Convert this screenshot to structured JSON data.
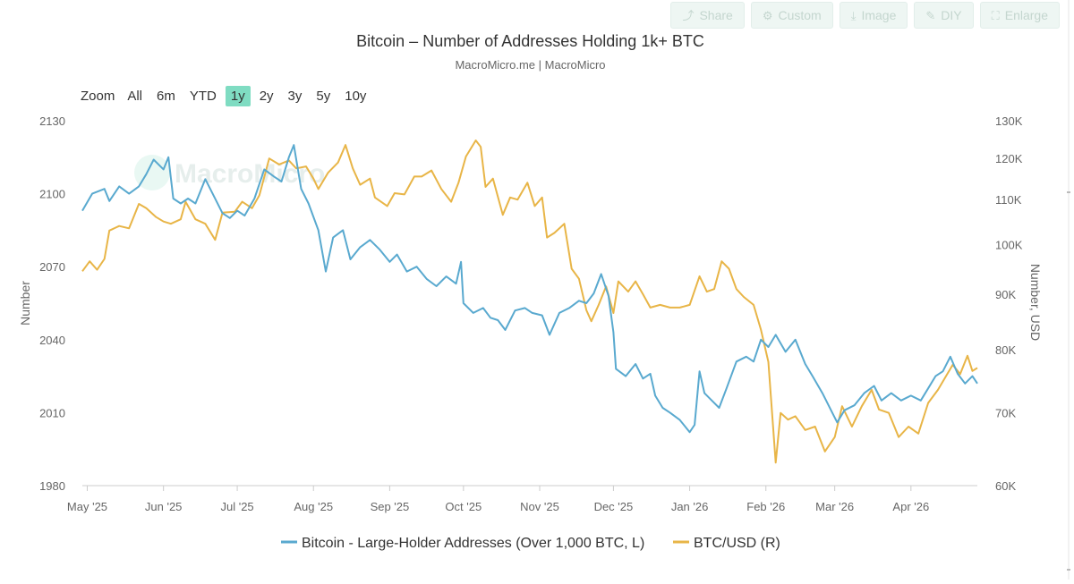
{
  "toolbar": {
    "buttons": [
      {
        "label": "Share",
        "icon": "share-icon",
        "glyph": "⤴"
      },
      {
        "label": "Custom",
        "icon": "gear-icon",
        "glyph": "⚙"
      },
      {
        "label": "Image",
        "icon": "download-icon",
        "glyph": "⤓"
      },
      {
        "label": "DIY",
        "icon": "pencil-icon",
        "glyph": "✎"
      },
      {
        "label": "Enlarge",
        "icon": "expand-icon",
        "glyph": "⛶"
      }
    ]
  },
  "zoom": {
    "label": "Zoom",
    "options": [
      "All",
      "6m",
      "YTD",
      "1y",
      "2y",
      "3y",
      "5y",
      "10y"
    ],
    "selected": "1y"
  },
  "colors": {
    "addresses": "#59a9cf",
    "btc": "#e8b547",
    "zoom_active": "#7fdcc2"
  },
  "watermark": "MacroMicro",
  "chart_data": {
    "type": "line",
    "title": "Bitcoin – Number of Addresses Holding 1k+ BTC",
    "subtitle": "MacroMicro.me | MacroMicro",
    "x_start": "2025-04-29",
    "x_end": "2026-04-28",
    "x_ticks": [
      {
        "date": "2025-05-01",
        "label": "May '25"
      },
      {
        "date": "2025-06-01",
        "label": "Jun '25"
      },
      {
        "date": "2025-07-01",
        "label": "Jul '25"
      },
      {
        "date": "2025-08-01",
        "label": "Aug '25"
      },
      {
        "date": "2025-09-01",
        "label": "Sep '25"
      },
      {
        "date": "2025-10-01",
        "label": "Oct '25"
      },
      {
        "date": "2025-11-01",
        "label": "Nov '25"
      },
      {
        "date": "2025-12-01",
        "label": "Dec '25"
      },
      {
        "date": "2026-01-01",
        "label": "Jan '26"
      },
      {
        "date": "2026-02-01",
        "label": "Feb '26"
      },
      {
        "date": "2026-03-01",
        "label": "Mar '26"
      },
      {
        "date": "2026-04-01",
        "label": "Apr '26"
      }
    ],
    "y_left": {
      "label": "Number",
      "min": 1980,
      "max": 2130,
      "ticks": [
        1980,
        2010,
        2040,
        2070,
        2100,
        2130
      ]
    },
    "y_right": {
      "label": "Number, USD",
      "scale": "log",
      "min": 60000,
      "max": 130000,
      "ticks": [
        60000,
        70000,
        80000,
        90000,
        100000,
        110000,
        120000,
        130000
      ],
      "tick_labels": [
        "60K",
        "70K",
        "80K",
        "90K",
        "100K",
        "110K",
        "120K",
        "130K"
      ]
    },
    "grid": false,
    "legend_position": "bottom-center",
    "series": [
      {
        "name": "Bitcoin - Large-Holder Addresses (Over 1,000 BTC, L)",
        "axis": "left",
        "color": "#59a9cf",
        "points": [
          [
            "2025-04-29",
            2093
          ],
          [
            "2025-05-03",
            2100
          ],
          [
            "2025-05-08",
            2102
          ],
          [
            "2025-05-10",
            2097
          ],
          [
            "2025-05-14",
            2103
          ],
          [
            "2025-05-18",
            2100
          ],
          [
            "2025-05-22",
            2103
          ],
          [
            "2025-05-25",
            2108
          ],
          [
            "2025-05-28",
            2114
          ],
          [
            "2025-06-01",
            2110
          ],
          [
            "2025-06-03",
            2115
          ],
          [
            "2025-06-05",
            2098
          ],
          [
            "2025-06-08",
            2096
          ],
          [
            "2025-06-11",
            2098
          ],
          [
            "2025-06-14",
            2096
          ],
          [
            "2025-06-18",
            2106
          ],
          [
            "2025-06-21",
            2100
          ],
          [
            "2025-06-25",
            2092
          ],
          [
            "2025-06-28",
            2090
          ],
          [
            "2025-07-01",
            2093
          ],
          [
            "2025-07-04",
            2091
          ],
          [
            "2025-07-08",
            2098
          ],
          [
            "2025-07-12",
            2110
          ],
          [
            "2025-07-16",
            2107
          ],
          [
            "2025-07-19",
            2105
          ],
          [
            "2025-07-22",
            2115
          ],
          [
            "2025-07-24",
            2120
          ],
          [
            "2025-07-27",
            2102
          ],
          [
            "2025-07-30",
            2096
          ],
          [
            "2025-08-03",
            2085
          ],
          [
            "2025-08-06",
            2068
          ],
          [
            "2025-08-09",
            2082
          ],
          [
            "2025-08-13",
            2085
          ],
          [
            "2025-08-16",
            2073
          ],
          [
            "2025-08-20",
            2078
          ],
          [
            "2025-08-24",
            2081
          ],
          [
            "2025-08-28",
            2077
          ],
          [
            "2025-09-01",
            2072
          ],
          [
            "2025-09-04",
            2075
          ],
          [
            "2025-09-08",
            2068
          ],
          [
            "2025-09-12",
            2070
          ],
          [
            "2025-09-16",
            2065
          ],
          [
            "2025-09-20",
            2062
          ],
          [
            "2025-09-24",
            2066
          ],
          [
            "2025-09-28",
            2063
          ],
          [
            "2025-09-30",
            2072
          ],
          [
            "2025-10-01",
            2055
          ],
          [
            "2025-10-05",
            2051
          ],
          [
            "2025-10-09",
            2053
          ],
          [
            "2025-10-12",
            2049
          ],
          [
            "2025-10-15",
            2048
          ],
          [
            "2025-10-18",
            2044
          ],
          [
            "2025-10-22",
            2052
          ],
          [
            "2025-10-26",
            2053
          ],
          [
            "2025-10-29",
            2051
          ],
          [
            "2025-11-02",
            2050
          ],
          [
            "2025-11-05",
            2042
          ],
          [
            "2025-11-09",
            2051
          ],
          [
            "2025-11-13",
            2053
          ],
          [
            "2025-11-17",
            2056
          ],
          [
            "2025-11-20",
            2055
          ],
          [
            "2025-11-23",
            2059
          ],
          [
            "2025-11-26",
            2067
          ],
          [
            "2025-11-29",
            2058
          ],
          [
            "2025-12-01",
            2043
          ],
          [
            "2025-12-02",
            2028
          ],
          [
            "2025-12-06",
            2025
          ],
          [
            "2025-12-10",
            2030
          ],
          [
            "2025-12-13",
            2024
          ],
          [
            "2025-12-16",
            2026
          ],
          [
            "2025-12-18",
            2017
          ],
          [
            "2025-12-21",
            2012
          ],
          [
            "2025-12-24",
            2010
          ],
          [
            "2025-12-28",
            2007
          ],
          [
            "2026-01-01",
            2002
          ],
          [
            "2026-01-03",
            2005
          ],
          [
            "2026-01-05",
            2027
          ],
          [
            "2026-01-07",
            2018
          ],
          [
            "2026-01-10",
            2015
          ],
          [
            "2026-01-13",
            2012
          ],
          [
            "2026-01-16",
            2020
          ],
          [
            "2026-01-20",
            2031
          ],
          [
            "2026-01-24",
            2033
          ],
          [
            "2026-01-27",
            2031
          ],
          [
            "2026-01-30",
            2040
          ],
          [
            "2026-02-02",
            2037
          ],
          [
            "2026-02-05",
            2042
          ],
          [
            "2026-02-09",
            2035
          ],
          [
            "2026-02-13",
            2040
          ],
          [
            "2026-02-17",
            2030
          ],
          [
            "2026-02-20",
            2025
          ],
          [
            "2026-02-24",
            2018
          ],
          [
            "2026-02-28",
            2010
          ],
          [
            "2026-03-02",
            2006
          ],
          [
            "2026-03-05",
            2011
          ],
          [
            "2026-03-09",
            2013
          ],
          [
            "2026-03-13",
            2018
          ],
          [
            "2026-03-17",
            2021
          ],
          [
            "2026-03-20",
            2015
          ],
          [
            "2026-03-24",
            2018
          ],
          [
            "2026-03-28",
            2015
          ],
          [
            "2026-04-01",
            2017
          ],
          [
            "2026-04-05",
            2015
          ],
          [
            "2026-04-08",
            2020
          ],
          [
            "2026-04-11",
            2025
          ],
          [
            "2026-04-14",
            2027
          ],
          [
            "2026-04-17",
            2033
          ],
          [
            "2026-04-20",
            2026
          ],
          [
            "2026-04-23",
            2022
          ],
          [
            "2026-04-26",
            2025
          ],
          [
            "2026-04-28",
            2022
          ]
        ]
      },
      {
        "name": "BTC/USD (R)",
        "axis": "right",
        "color": "#e8b547",
        "points": [
          [
            "2025-04-29",
            94500
          ],
          [
            "2025-05-02",
            96500
          ],
          [
            "2025-05-05",
            94800
          ],
          [
            "2025-05-08",
            97000
          ],
          [
            "2025-05-10",
            103000
          ],
          [
            "2025-05-14",
            104000
          ],
          [
            "2025-05-18",
            103500
          ],
          [
            "2025-05-22",
            109000
          ],
          [
            "2025-05-25",
            108000
          ],
          [
            "2025-05-29",
            106000
          ],
          [
            "2025-06-01",
            105000
          ],
          [
            "2025-06-04",
            104500
          ],
          [
            "2025-06-08",
            105500
          ],
          [
            "2025-06-10",
            109500
          ],
          [
            "2025-06-14",
            105500
          ],
          [
            "2025-06-18",
            104500
          ],
          [
            "2025-06-22",
            101000
          ],
          [
            "2025-06-25",
            107000
          ],
          [
            "2025-06-30",
            107200
          ],
          [
            "2025-07-03",
            109500
          ],
          [
            "2025-07-07",
            108000
          ],
          [
            "2025-07-10",
            111000
          ],
          [
            "2025-07-14",
            120000
          ],
          [
            "2025-07-18",
            118500
          ],
          [
            "2025-07-22",
            119500
          ],
          [
            "2025-07-25",
            117500
          ],
          [
            "2025-07-29",
            118000
          ],
          [
            "2025-08-01",
            115000
          ],
          [
            "2025-08-03",
            112500
          ],
          [
            "2025-08-07",
            116500
          ],
          [
            "2025-08-11",
            119000
          ],
          [
            "2025-08-14",
            123500
          ],
          [
            "2025-08-17",
            117500
          ],
          [
            "2025-08-20",
            113500
          ],
          [
            "2025-08-24",
            115000
          ],
          [
            "2025-08-26",
            110500
          ],
          [
            "2025-08-31",
            108500
          ],
          [
            "2025-09-03",
            111500
          ],
          [
            "2025-09-07",
            111200
          ],
          [
            "2025-09-11",
            115500
          ],
          [
            "2025-09-14",
            115500
          ],
          [
            "2025-09-18",
            117000
          ],
          [
            "2025-09-22",
            112500
          ],
          [
            "2025-09-26",
            109500
          ],
          [
            "2025-09-29",
            114000
          ],
          [
            "2025-10-02",
            120500
          ],
          [
            "2025-10-06",
            124700
          ],
          [
            "2025-10-08",
            123000
          ],
          [
            "2025-10-10",
            113000
          ],
          [
            "2025-10-13",
            115000
          ],
          [
            "2025-10-17",
            106500
          ],
          [
            "2025-10-20",
            110500
          ],
          [
            "2025-10-23",
            110000
          ],
          [
            "2025-10-27",
            114000
          ],
          [
            "2025-10-30",
            108500
          ],
          [
            "2025-11-02",
            110500
          ],
          [
            "2025-11-04",
            101500
          ],
          [
            "2025-11-07",
            102500
          ],
          [
            "2025-11-11",
            104500
          ],
          [
            "2025-11-14",
            95000
          ],
          [
            "2025-11-17",
            93000
          ],
          [
            "2025-11-20",
            87000
          ],
          [
            "2025-11-22",
            85000
          ],
          [
            "2025-11-25",
            88000
          ],
          [
            "2025-11-28",
            91500
          ],
          [
            "2025-12-01",
            86500
          ],
          [
            "2025-12-03",
            92500
          ],
          [
            "2025-12-07",
            90500
          ],
          [
            "2025-12-10",
            92500
          ],
          [
            "2025-12-13",
            90000
          ],
          [
            "2025-12-16",
            87500
          ],
          [
            "2025-12-20",
            88000
          ],
          [
            "2025-12-24",
            87500
          ],
          [
            "2025-12-28",
            87500
          ],
          [
            "2026-01-01",
            88000
          ],
          [
            "2026-01-05",
            93500
          ],
          [
            "2026-01-08",
            90500
          ],
          [
            "2026-01-11",
            91000
          ],
          [
            "2026-01-14",
            96500
          ],
          [
            "2026-01-17",
            95000
          ],
          [
            "2026-01-20",
            91000
          ],
          [
            "2026-01-23",
            89500
          ],
          [
            "2026-01-27",
            88000
          ],
          [
            "2026-01-30",
            83500
          ],
          [
            "2026-02-02",
            78000
          ],
          [
            "2026-02-05",
            63000
          ],
          [
            "2026-02-07",
            70000
          ],
          [
            "2026-02-10",
            69000
          ],
          [
            "2026-02-13",
            69500
          ],
          [
            "2026-02-17",
            67500
          ],
          [
            "2026-02-21",
            68000
          ],
          [
            "2026-02-25",
            64500
          ],
          [
            "2026-03-01",
            66500
          ],
          [
            "2026-03-04",
            71000
          ],
          [
            "2026-03-08",
            68000
          ],
          [
            "2026-03-12",
            71000
          ],
          [
            "2026-03-16",
            73500
          ],
          [
            "2026-03-19",
            70500
          ],
          [
            "2026-03-23",
            70000
          ],
          [
            "2026-03-27",
            66500
          ],
          [
            "2026-03-31",
            68000
          ],
          [
            "2026-04-04",
            67000
          ],
          [
            "2026-04-08",
            71500
          ],
          [
            "2026-04-12",
            73500
          ],
          [
            "2026-04-15",
            75500
          ],
          [
            "2026-04-18",
            77500
          ],
          [
            "2026-04-21",
            76000
          ],
          [
            "2026-04-24",
            79000
          ],
          [
            "2026-04-26",
            76500
          ],
          [
            "2026-04-28",
            77000
          ]
        ]
      }
    ]
  }
}
